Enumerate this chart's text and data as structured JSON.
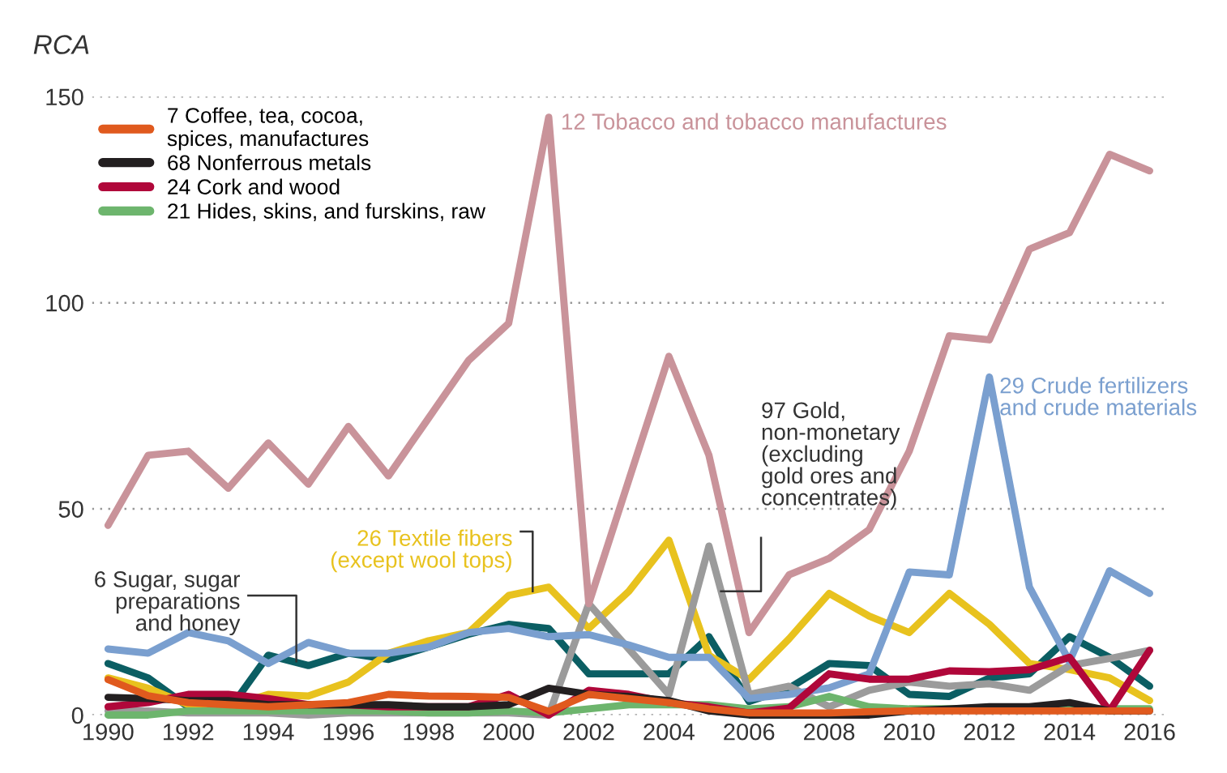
{
  "chart_data": {
    "type": "line",
    "ylabel": "RCA",
    "x": [
      1990,
      1991,
      1992,
      1993,
      1994,
      1995,
      1996,
      1997,
      1998,
      1999,
      2000,
      2001,
      2002,
      2003,
      2004,
      2005,
      2006,
      2007,
      2008,
      2009,
      2010,
      2011,
      2012,
      2013,
      2014,
      2015,
      2016
    ],
    "xlim": [
      1989.6,
      2016.4
    ],
    "xticks": [
      1990,
      1992,
      1994,
      1996,
      1998,
      2000,
      2002,
      2004,
      2006,
      2008,
      2010,
      2012,
      2014,
      2016
    ],
    "ylim": [
      0,
      150
    ],
    "yticks": [
      0,
      50,
      100,
      150
    ],
    "grid": "y",
    "legend": "top left",
    "marker": "none",
    "line_style": "solid",
    "series": [
      {
        "name": "7 Coffee, tea, cocoa,\nspices, manufactures",
        "color": "#e05a1e",
        "values": [
          8.6,
          4.7,
          3,
          2.5,
          2,
          2.5,
          3,
          5,
          4.6,
          4.5,
          4.3,
          0.9,
          5,
          4,
          3,
          1.5,
          0.5,
          0.5,
          0.5,
          0.8,
          1,
          1,
          1,
          1,
          1,
          1,
          1
        ]
      },
      {
        "name": "68 Nonferrous metals",
        "color": "#231f20",
        "values": [
          4.3,
          4,
          3.5,
          3.5,
          2.5,
          2.5,
          2.5,
          2.5,
          2,
          2,
          2.5,
          6.5,
          5,
          4.5,
          3.5,
          1,
          0,
          0,
          0,
          0,
          1,
          1.5,
          2,
          2,
          3,
          1,
          1
        ]
      },
      {
        "name": "24 Cork and wood",
        "color": "#b0073a",
        "values": [
          2,
          3,
          5,
          5,
          4,
          2.5,
          2.5,
          2,
          2,
          2,
          5,
          0,
          6,
          5,
          3,
          2,
          0.5,
          1.7,
          10,
          8.7,
          8.7,
          10.7,
          10.5,
          11,
          14,
          1,
          15.7
        ]
      },
      {
        "name": "21 Hides, skins, and furskins, raw",
        "color": "#6db56d",
        "values": [
          0,
          0,
          1,
          1,
          1,
          1,
          1,
          1,
          0.5,
          0.5,
          1,
          0.5,
          1.5,
          2.5,
          2.5,
          2.5,
          1.5,
          2,
          4.5,
          2,
          1.5,
          1.5,
          1.5,
          1.5,
          1.5,
          1.5,
          1.5
        ]
      },
      {
        "name": "12 Tobacco and tobacco manufactures",
        "color": "#c9939a",
        "values": [
          46,
          63,
          64,
          55,
          66,
          56,
          70,
          58,
          72,
          86,
          95,
          145,
          27,
          57,
          87,
          63,
          20,
          34,
          38,
          45,
          64,
          92,
          91,
          113,
          117,
          136,
          132
        ]
      },
      {
        "name": "29 Crude fertilizers\nand crude materials",
        "color": "#7a9fcf",
        "values": [
          16,
          15,
          20,
          18,
          12.5,
          17.6,
          15,
          15,
          16.5,
          20,
          21,
          19,
          19.5,
          17,
          14,
          14,
          4,
          5,
          6.6,
          10,
          34.7,
          34,
          82,
          31,
          13,
          35,
          29.5
        ]
      },
      {
        "name": "97 Gold,\nnon-monetary\n(excluding\ngold ores and\nconcentrates)",
        "color": "#9b9b9b",
        "values": [
          1,
          1,
          0.5,
          0.5,
          0.5,
          0,
          0.5,
          0.5,
          0.5,
          0.5,
          0.5,
          0,
          27,
          16,
          5,
          41,
          5,
          7,
          2,
          6,
          8,
          7,
          7.6,
          6,
          12,
          13.7,
          15.7
        ]
      },
      {
        "name": "26 Textile fibers\n(except wool tops)",
        "color": "#e8c21e",
        "values": [
          9,
          6.5,
          2.5,
          2,
          5,
          4.6,
          8,
          15,
          18,
          20,
          29,
          31,
          21,
          30,
          42.4,
          14.5,
          8.6,
          18.5,
          29.5,
          24,
          20,
          29.5,
          22,
          12.5,
          11,
          9,
          3.5
        ]
      },
      {
        "name": "6 Sugar, sugar\npreparations\nand honey",
        "color": "#0b5e63",
        "values": [
          12.5,
          9,
          2,
          1,
          14.5,
          12,
          15,
          13.5,
          16.5,
          19.6,
          22,
          21,
          10,
          10,
          10,
          19,
          3.3,
          6.5,
          12.5,
          12,
          5,
          4.5,
          9,
          10,
          19,
          14,
          7
        ]
      }
    ]
  }
}
